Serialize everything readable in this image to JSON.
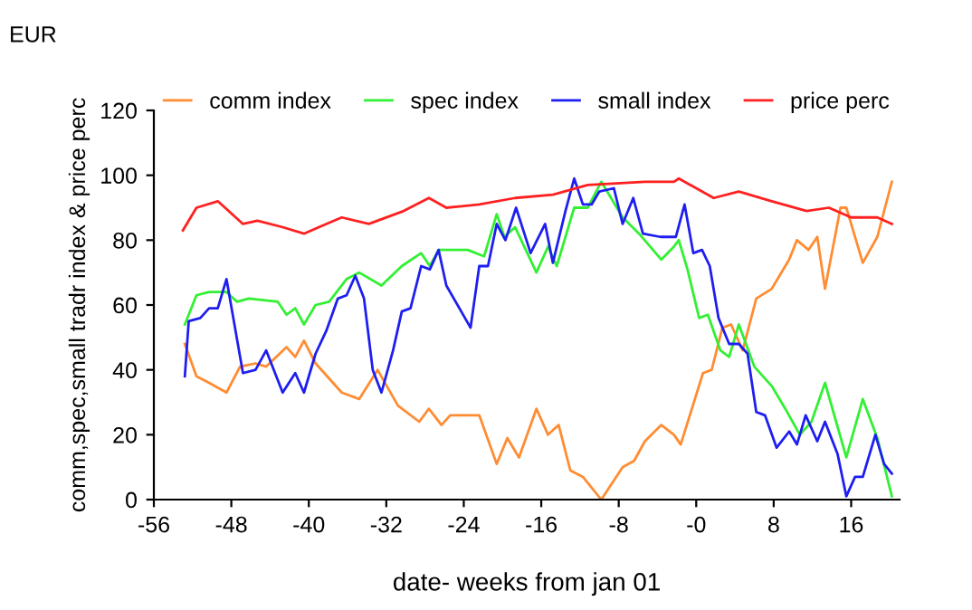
{
  "chart_data": {
    "type": "line",
    "title": "EUR",
    "xlabel": "date- weeks from jan 01",
    "ylabel": "comm,spec,small tradr index & price perc",
    "xlim": [
      -56,
      21
    ],
    "xticks": [
      -56,
      -48,
      -40,
      -32,
      -24,
      -16,
      -8,
      {
        "value": 0,
        "label": "-0"
      },
      8,
      16
    ],
    "ylim": [
      0,
      120
    ],
    "yticks": [
      0,
      20,
      40,
      60,
      80,
      100,
      120
    ],
    "grid": false,
    "legend": "top",
    "marker": "none",
    "line_style": "solid",
    "series": [
      {
        "name": "comm index",
        "color": "#ff8c32",
        "x": [
          -52.8,
          -51.6,
          -50.3,
          -48.5,
          -47.1,
          -45.5,
          -44.4,
          -42.3,
          -41.4,
          -40.5,
          -39.3,
          -36.6,
          -34.8,
          -32.9,
          -30.8,
          -28.6,
          -27.6,
          -26.3,
          -25.4,
          -22.4,
          -20.6,
          -19.5,
          -18.3,
          -16.5,
          -15.3,
          -14.2,
          -13,
          -11.7,
          -9.8,
          -7.6,
          -6.4,
          -5.3,
          -3.6,
          -2.3,
          -1.6,
          0.7,
          1.6,
          2.7,
          3.6,
          4.8,
          6.2,
          7.8,
          9.6,
          10.4,
          11.6,
          12.5,
          13.3,
          14.9,
          15.5,
          17.2,
          18.7,
          20.2
        ],
        "values": [
          48,
          38,
          36,
          33,
          41,
          42,
          41,
          47,
          44,
          49,
          42,
          33,
          31,
          40,
          29,
          24,
          28,
          23,
          26,
          26,
          11,
          19,
          13,
          28,
          20,
          23,
          9,
          7,
          0,
          10,
          12,
          18,
          23,
          20,
          17,
          39,
          40,
          53,
          54,
          46,
          62,
          65,
          74,
          80,
          77,
          81,
          65,
          90,
          90,
          73,
          81,
          98
        ]
      },
      {
        "name": "spec index",
        "color": "#32f032",
        "x": [
          -52.8,
          -51.6,
          -50.3,
          -48.5,
          -47.4,
          -46.2,
          -43.2,
          -42.3,
          -41.4,
          -40.5,
          -39.3,
          -37.9,
          -36.1,
          -34.8,
          -32.5,
          -30.4,
          -28.4,
          -27.5,
          -26.6,
          -23.6,
          -21.9,
          -20.6,
          -19.8,
          -18.7,
          -16.5,
          -15.3,
          -14.4,
          -12.6,
          -11.2,
          -9.8,
          -7.6,
          -5.9,
          -3.6,
          -2.3,
          -1.8,
          -0.9,
          0.3,
          1.2,
          2.5,
          3.4,
          4.4,
          6,
          7.8,
          9.2,
          10.7,
          11.9,
          13.3,
          15.5,
          17.2,
          18.7,
          20.2
        ],
        "values": [
          54,
          63,
          64,
          64,
          61,
          62,
          61,
          57,
          59,
          54,
          60,
          61,
          68,
          70,
          66,
          72,
          76,
          72,
          77,
          77,
          75,
          88,
          81,
          84,
          70,
          78,
          72,
          90,
          90,
          98,
          87,
          82,
          74,
          78,
          80,
          71,
          56,
          57,
          46,
          44,
          54,
          41,
          35,
          28,
          20,
          24,
          36,
          13,
          31,
          19,
          1
        ]
      },
      {
        "name": "small index",
        "color": "#1e1ef0",
        "x": [
          -52.8,
          -52.4,
          -51.2,
          -50.3,
          -49.4,
          -48.5,
          -46.8,
          -45.5,
          -44.4,
          -42.7,
          -41.4,
          -40.5,
          -39.3,
          -38.2,
          -37,
          -36.1,
          -35.2,
          -34.3,
          -33.4,
          -32.5,
          -31.3,
          -30.4,
          -29.5,
          -28.4,
          -27.5,
          -26.6,
          -25.8,
          -23.3,
          -22.4,
          -21.5,
          -20.6,
          -19.7,
          -18.6,
          -17.1,
          -15.6,
          -14.8,
          -13.5,
          -12.6,
          -11.7,
          -10.8,
          -10,
          -8.5,
          -7.6,
          -6.5,
          -5.5,
          -3.7,
          -2.1,
          -1.2,
          -0.3,
          0.6,
          1.4,
          2.3,
          3.4,
          4.4,
          5.3,
          6.2,
          7.1,
          8.3,
          9.6,
          10.4,
          11.3,
          12.5,
          13.3,
          14.6,
          15.5,
          16.4,
          17.2,
          18.5,
          19.4,
          20.2
        ],
        "values": [
          38,
          55,
          56,
          59,
          59,
          68,
          39,
          40,
          46,
          33,
          39,
          33,
          45,
          52,
          62,
          63,
          69,
          62,
          40,
          33,
          46,
          58,
          59,
          72,
          71,
          77,
          66,
          53,
          72,
          72,
          85,
          80,
          90,
          76,
          85,
          73,
          89,
          99,
          91,
          91,
          95,
          96,
          85,
          93,
          82,
          81,
          81,
          91,
          76,
          77,
          72,
          56,
          48,
          48,
          45,
          27,
          26,
          16,
          21,
          17,
          26,
          18,
          24,
          14,
          1,
          7,
          7,
          20,
          11,
          8
        ]
      },
      {
        "name": "price perc",
        "color": "#ff2020",
        "x": [
          -53,
          -51.6,
          -49.4,
          -46.8,
          -45.3,
          -42.7,
          -40.5,
          -38.2,
          -36.6,
          -33.8,
          -30.2,
          -27.6,
          -25.8,
          -22.4,
          -18.7,
          -14.8,
          -11.2,
          -5.3,
          -2.3,
          -1.8,
          1.8,
          4.4,
          7.8,
          11.4,
          13.7,
          16,
          18.7,
          20.2
        ],
        "values": [
          83,
          90,
          92,
          85,
          86,
          84,
          82,
          85,
          87,
          85,
          89,
          93,
          90,
          91,
          93,
          94,
          97,
          98,
          98,
          99,
          93,
          95,
          92,
          89,
          90,
          87,
          87,
          85
        ]
      }
    ]
  }
}
